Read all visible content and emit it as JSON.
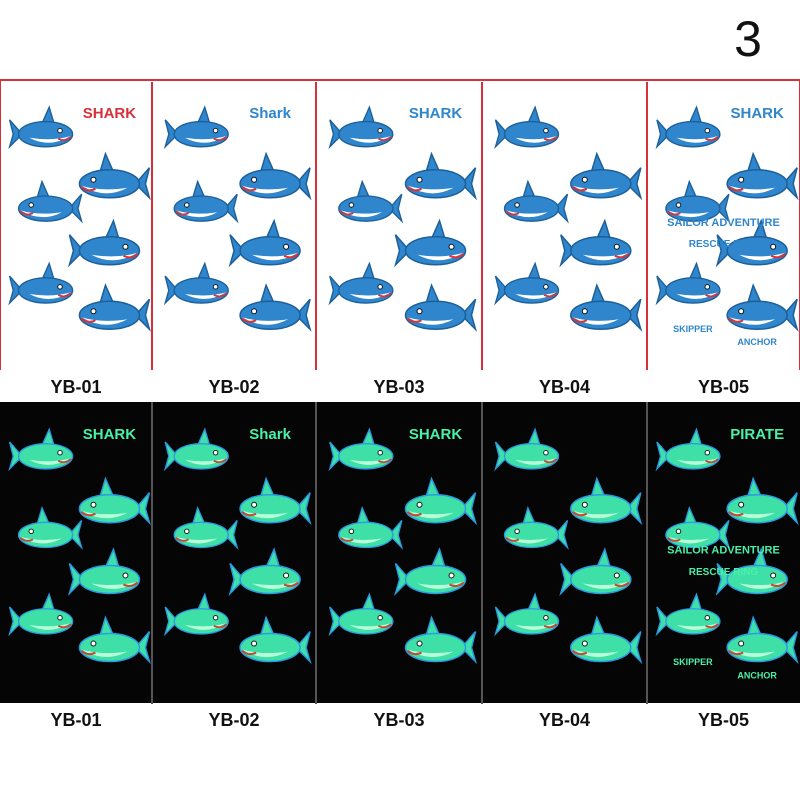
{
  "badge": "3",
  "top_sheets": [
    {
      "label": "YB-01",
      "texts": [
        "SHARK"
      ]
    },
    {
      "label": "YB-02",
      "texts": [
        "Shark"
      ]
    },
    {
      "label": "YB-03",
      "texts": [
        "SHARK"
      ]
    },
    {
      "label": "YB-04",
      "texts": []
    },
    {
      "label": "YB-05",
      "texts": [
        "SHARK",
        "SAILOR ADVENTURE",
        "RESCUE RING",
        "SKIPPER",
        "ANCHOR"
      ]
    }
  ],
  "bottom_sheets": [
    {
      "label": "YB-01",
      "texts": [
        "SHARK"
      ]
    },
    {
      "label": "YB-02",
      "texts": [
        "Shark"
      ]
    },
    {
      "label": "YB-03",
      "texts": [
        "SHARK"
      ]
    },
    {
      "label": "YB-04",
      "texts": []
    },
    {
      "label": "YB-05",
      "texts": [
        "PIRATE",
        "SAILOR ADVENTURE",
        "RESCUE RING",
        "SKIPPER",
        "ANCHOR"
      ]
    }
  ]
}
